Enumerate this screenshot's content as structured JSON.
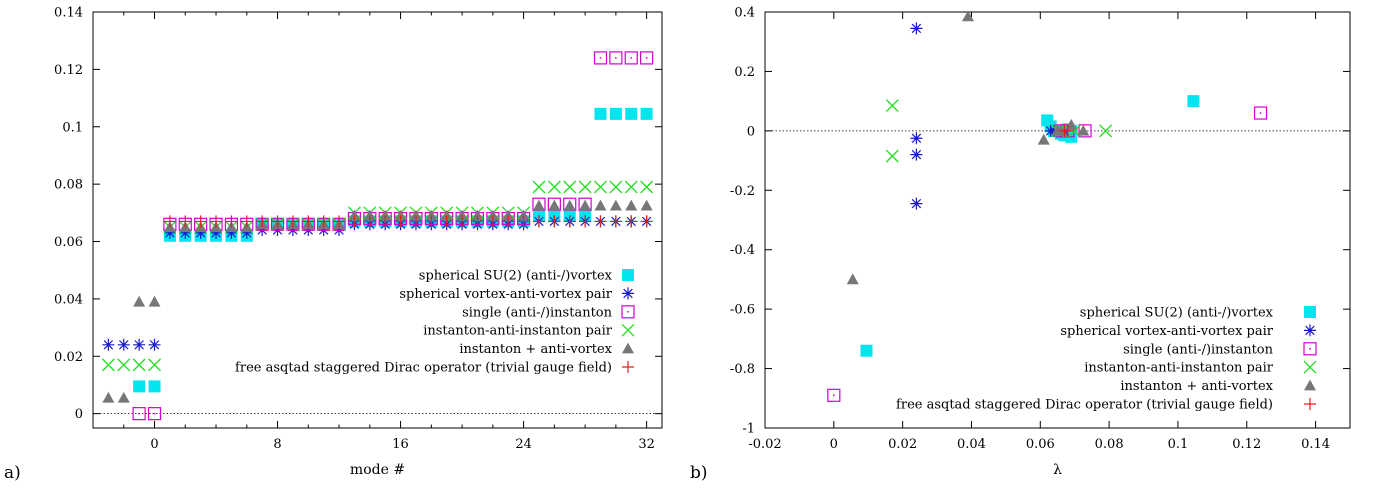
{
  "legend_entries": [
    "spherical SU(2) (anti-/)vortex",
    "spherical vortex-anti-vortex pair",
    "single (anti-/)instanton",
    "instanton-anti-instanton pair",
    "instanton + anti-vortex",
    "free asqtad staggered Dirac operator (trivial gauge field)"
  ],
  "colors": [
    "#00e5ee",
    "#1a1acc",
    "#d000d0",
    "#22dd22",
    "#777777",
    "#e02020"
  ],
  "chart_data": [
    {
      "type": "scatter",
      "panel_label": "a)",
      "xlabel": "mode #",
      "ylabel": "",
      "xlim": [
        -4,
        33
      ],
      "ylim": [
        -0.005,
        0.14
      ],
      "xticks": [
        0,
        8,
        16,
        24,
        32
      ],
      "yticks": [
        0,
        0.02,
        0.04,
        0.06,
        0.08,
        0.1,
        0.12,
        0.14
      ],
      "ytick_labels": [
        "0",
        "0.02",
        "0.04",
        "0.06",
        "0.08",
        "0.1",
        "0.12",
        "0.14"
      ],
      "zero_line": true,
      "legend_position": "center-right",
      "series": [
        {
          "marker": "filled-square",
          "points": [
            [
              -1,
              0.0095
            ],
            [
              0,
              0.0095
            ],
            [
              1,
              0.062
            ],
            [
              2,
              0.062
            ],
            [
              3,
              0.062
            ],
            [
              4,
              0.062
            ],
            [
              5,
              0.062
            ],
            [
              6,
              0.062
            ],
            [
              7,
              0.066
            ],
            [
              8,
              0.066
            ],
            [
              9,
              0.066
            ],
            [
              10,
              0.066
            ],
            [
              11,
              0.066
            ],
            [
              12,
              0.066
            ],
            [
              13,
              0.067
            ],
            [
              14,
              0.067
            ],
            [
              15,
              0.067
            ],
            [
              16,
              0.067
            ],
            [
              17,
              0.067
            ],
            [
              18,
              0.067
            ],
            [
              19,
              0.067
            ],
            [
              20,
              0.067
            ],
            [
              21,
              0.067
            ],
            [
              22,
              0.067
            ],
            [
              23,
              0.067
            ],
            [
              24,
              0.067
            ],
            [
              25,
              0.069
            ],
            [
              26,
              0.069
            ],
            [
              27,
              0.069
            ],
            [
              28,
              0.069
            ],
            [
              29,
              0.1045
            ],
            [
              30,
              0.1045
            ],
            [
              31,
              0.1045
            ],
            [
              32,
              0.1045
            ]
          ]
        },
        {
          "marker": "asterisk",
          "points": [
            [
              -3,
              0.024
            ],
            [
              -2,
              0.024
            ],
            [
              -1,
              0.024
            ],
            [
              0,
              0.024
            ],
            [
              1,
              0.063
            ],
            [
              2,
              0.063
            ],
            [
              3,
              0.063
            ],
            [
              4,
              0.063
            ],
            [
              5,
              0.063
            ],
            [
              6,
              0.063
            ],
            [
              7,
              0.064
            ],
            [
              8,
              0.064
            ],
            [
              9,
              0.064
            ],
            [
              10,
              0.064
            ],
            [
              11,
              0.064
            ],
            [
              12,
              0.064
            ],
            [
              13,
              0.066
            ],
            [
              14,
              0.066
            ],
            [
              15,
              0.066
            ],
            [
              16,
              0.066
            ],
            [
              17,
              0.066
            ],
            [
              18,
              0.066
            ],
            [
              19,
              0.066
            ],
            [
              20,
              0.066
            ],
            [
              21,
              0.066
            ],
            [
              22,
              0.066
            ],
            [
              23,
              0.066
            ],
            [
              24,
              0.066
            ],
            [
              25,
              0.067
            ],
            [
              26,
              0.067
            ],
            [
              27,
              0.067
            ],
            [
              28,
              0.067
            ],
            [
              29,
              0.067
            ],
            [
              30,
              0.067
            ],
            [
              31,
              0.067
            ],
            [
              32,
              0.067
            ]
          ]
        },
        {
          "marker": "open-square",
          "points": [
            [
              -1,
              0
            ],
            [
              0,
              0
            ],
            [
              1,
              0.066
            ],
            [
              2,
              0.066
            ],
            [
              3,
              0.066
            ],
            [
              4,
              0.066
            ],
            [
              5,
              0.066
            ],
            [
              6,
              0.066
            ],
            [
              7,
              0.066
            ],
            [
              8,
              0.066
            ],
            [
              9,
              0.066
            ],
            [
              10,
              0.066
            ],
            [
              11,
              0.066
            ],
            [
              12,
              0.066
            ],
            [
              13,
              0.068
            ],
            [
              14,
              0.068
            ],
            [
              15,
              0.068
            ],
            [
              16,
              0.068
            ],
            [
              17,
              0.068
            ],
            [
              18,
              0.068
            ],
            [
              19,
              0.068
            ],
            [
              20,
              0.068
            ],
            [
              21,
              0.068
            ],
            [
              22,
              0.068
            ],
            [
              23,
              0.068
            ],
            [
              24,
              0.068
            ],
            [
              25,
              0.073
            ],
            [
              26,
              0.073
            ],
            [
              27,
              0.073
            ],
            [
              28,
              0.073
            ],
            [
              29,
              0.124
            ],
            [
              30,
              0.124
            ],
            [
              31,
              0.124
            ],
            [
              32,
              0.124
            ]
          ]
        },
        {
          "marker": "cross",
          "points": [
            [
              -3,
              0.017
            ],
            [
              -2,
              0.017
            ],
            [
              -1,
              0.017
            ],
            [
              0,
              0.017
            ],
            [
              1,
              0.065
            ],
            [
              2,
              0.065
            ],
            [
              3,
              0.065
            ],
            [
              4,
              0.065
            ],
            [
              5,
              0.065
            ],
            [
              6,
              0.065
            ],
            [
              7,
              0.066
            ],
            [
              8,
              0.066
            ],
            [
              9,
              0.066
            ],
            [
              10,
              0.066
            ],
            [
              11,
              0.066
            ],
            [
              12,
              0.066
            ],
            [
              13,
              0.07
            ],
            [
              14,
              0.07
            ],
            [
              15,
              0.07
            ],
            [
              16,
              0.07
            ],
            [
              17,
              0.07
            ],
            [
              18,
              0.07
            ],
            [
              19,
              0.07
            ],
            [
              20,
              0.07
            ],
            [
              21,
              0.07
            ],
            [
              22,
              0.07
            ],
            [
              23,
              0.07
            ],
            [
              24,
              0.07
            ],
            [
              25,
              0.079
            ],
            [
              26,
              0.079
            ],
            [
              27,
              0.079
            ],
            [
              28,
              0.079
            ],
            [
              29,
              0.079
            ],
            [
              30,
              0.079
            ],
            [
              31,
              0.079
            ],
            [
              32,
              0.079
            ]
          ]
        },
        {
          "marker": "triangle",
          "points": [
            [
              -3,
              0.0055
            ],
            [
              -2,
              0.0055
            ],
            [
              -1,
              0.039
            ],
            [
              0,
              0.039
            ],
            [
              1,
              0.065
            ],
            [
              2,
              0.065
            ],
            [
              3,
              0.065
            ],
            [
              4,
              0.065
            ],
            [
              5,
              0.065
            ],
            [
              6,
              0.065
            ],
            [
              7,
              0.066
            ],
            [
              8,
              0.066
            ],
            [
              9,
              0.066
            ],
            [
              10,
              0.066
            ],
            [
              11,
              0.066
            ],
            [
              12,
              0.066
            ],
            [
              13,
              0.069
            ],
            [
              14,
              0.069
            ],
            [
              15,
              0.069
            ],
            [
              16,
              0.069
            ],
            [
              17,
              0.069
            ],
            [
              18,
              0.069
            ],
            [
              19,
              0.069
            ],
            [
              20,
              0.069
            ],
            [
              21,
              0.069
            ],
            [
              22,
              0.069
            ],
            [
              23,
              0.069
            ],
            [
              24,
              0.069
            ],
            [
              25,
              0.0725
            ],
            [
              26,
              0.0725
            ],
            [
              27,
              0.0725
            ],
            [
              28,
              0.0725
            ],
            [
              29,
              0.0725
            ],
            [
              30,
              0.0725
            ],
            [
              31,
              0.0725
            ],
            [
              32,
              0.0725
            ]
          ]
        },
        {
          "marker": "plus",
          "points": [
            [
              1,
              0.067
            ],
            [
              2,
              0.067
            ],
            [
              3,
              0.067
            ],
            [
              4,
              0.067
            ],
            [
              5,
              0.067
            ],
            [
              6,
              0.067
            ],
            [
              7,
              0.067
            ],
            [
              8,
              0.067
            ],
            [
              9,
              0.067
            ],
            [
              10,
              0.067
            ],
            [
              11,
              0.067
            ],
            [
              12,
              0.067
            ],
            [
              13,
              0.067
            ],
            [
              14,
              0.067
            ],
            [
              15,
              0.067
            ],
            [
              16,
              0.067
            ],
            [
              17,
              0.067
            ],
            [
              18,
              0.067
            ],
            [
              19,
              0.067
            ],
            [
              20,
              0.067
            ],
            [
              21,
              0.067
            ],
            [
              22,
              0.067
            ],
            [
              23,
              0.067
            ],
            [
              24,
              0.067
            ],
            [
              25,
              0.067
            ],
            [
              26,
              0.067
            ],
            [
              27,
              0.067
            ],
            [
              28,
              0.067
            ],
            [
              29,
              0.067
            ],
            [
              30,
              0.067
            ],
            [
              31,
              0.067
            ],
            [
              32,
              0.067
            ]
          ]
        }
      ]
    },
    {
      "type": "scatter",
      "panel_label": "b)",
      "xlabel": "λ",
      "ylabel": "",
      "xlim": [
        -0.02,
        0.15
      ],
      "ylim": [
        -1,
        0.4
      ],
      "xticks": [
        -0.02,
        0,
        0.02,
        0.04,
        0.06,
        0.08,
        0.1,
        0.12,
        0.14
      ],
      "xtick_labels": [
        "-0.02",
        "0",
        "0.02",
        "0.04",
        "0.06",
        "0.08",
        "0.1",
        "0.12",
        "0.14"
      ],
      "yticks": [
        -1,
        -0.8,
        -0.6,
        -0.4,
        -0.2,
        0,
        0.2,
        0.4
      ],
      "ytick_labels": [
        "-1",
        "-0.8",
        "-0.6",
        "-0.4",
        "-0.2",
        "0",
        "0.2",
        "0.4"
      ],
      "zero_line": true,
      "legend_position": "bottom-right",
      "series": [
        {
          "marker": "filled-square",
          "points": [
            [
              0.0095,
              -0.74
            ],
            [
              0.062,
              0.035
            ],
            [
              0.063,
              0.015
            ],
            [
              0.064,
              0.0
            ],
            [
              0.066,
              -0.01
            ],
            [
              0.067,
              -0.015
            ],
            [
              0.068,
              0.005
            ],
            [
              0.069,
              -0.02
            ],
            [
              0.069,
              0.0
            ],
            [
              0.1045,
              0.1
            ]
          ]
        },
        {
          "marker": "asterisk",
          "points": [
            [
              0.024,
              0.345
            ],
            [
              0.024,
              -0.025
            ],
            [
              0.024,
              -0.08
            ],
            [
              0.024,
              -0.245
            ],
            [
              0.063,
              0.0
            ],
            [
              0.064,
              0.0
            ],
            [
              0.066,
              0.0
            ],
            [
              0.067,
              0.0
            ]
          ]
        },
        {
          "marker": "open-square",
          "points": [
            [
              0.0,
              -0.89
            ],
            [
              0.066,
              0.0
            ],
            [
              0.068,
              0.0
            ],
            [
              0.073,
              0.0
            ],
            [
              0.124,
              0.06
            ]
          ]
        },
        {
          "marker": "cross",
          "points": [
            [
              0.017,
              0.085
            ],
            [
              0.017,
              -0.085
            ],
            [
              0.065,
              0.0
            ],
            [
              0.066,
              0.0
            ],
            [
              0.07,
              0.0
            ],
            [
              0.079,
              0.0
            ]
          ]
        },
        {
          "marker": "triangle",
          "points": [
            [
              0.0055,
              -0.5
            ],
            [
              0.039,
              0.385
            ],
            [
              0.061,
              -0.03
            ],
            [
              0.065,
              0.0
            ],
            [
              0.066,
              0.0
            ],
            [
              0.069,
              0.02
            ],
            [
              0.0725,
              0.0
            ]
          ]
        },
        {
          "marker": "plus",
          "points": [
            [
              0.067,
              0.0
            ],
            [
              0.068,
              0.0
            ]
          ]
        }
      ]
    }
  ]
}
